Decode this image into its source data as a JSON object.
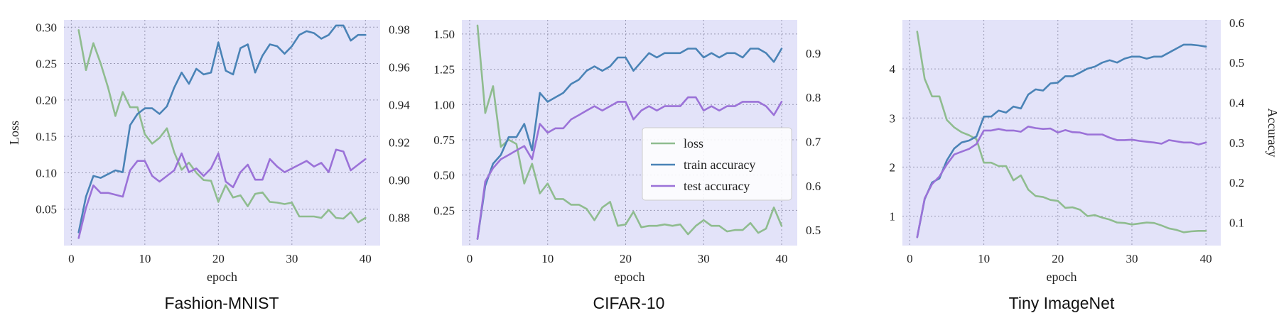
{
  "colors": {
    "plot_bg": "#e3e3f9",
    "grid": "#9a9ab4",
    "loss": "#8fbc8f",
    "train": "#4a83b6",
    "test": "#9b72d8"
  },
  "legend": {
    "loss": "loss",
    "train": "train accuracy",
    "test": "test accuracy"
  },
  "chart_data": [
    {
      "type": "line",
      "title": "Fashion-MNIST",
      "xlabel": "epoch",
      "ylabel_left": "Loss",
      "ylabel_right": "",
      "xlim": [
        -1.0,
        42.0
      ],
      "ylim_left": [
        0.0,
        0.31
      ],
      "ylim_right": [
        0.865,
        0.985
      ],
      "xticks": [
        0,
        10,
        20,
        30,
        40
      ],
      "yticks_left": [
        0.05,
        0.1,
        0.15,
        0.2,
        0.25,
        0.3
      ],
      "yticks_right": [
        0.88,
        0.9,
        0.92,
        0.94,
        0.96,
        0.98
      ],
      "ytick_labels_left": [
        "0.05",
        "0.10",
        "0.15",
        "0.20",
        "0.25",
        "0.30"
      ],
      "ytick_labels_right": [
        "0.88",
        "0.90",
        "0.92",
        "0.94",
        "0.96",
        "0.98"
      ],
      "grid": true,
      "legend_position": "none",
      "x": [
        1,
        2,
        3,
        4,
        5,
        6,
        7,
        8,
        9,
        10,
        11,
        12,
        13,
        14,
        15,
        16,
        17,
        18,
        19,
        20,
        21,
        22,
        23,
        24,
        25,
        26,
        27,
        28,
        29,
        30,
        31,
        32,
        33,
        34,
        35,
        36,
        37,
        38,
        39,
        40
      ],
      "series": [
        {
          "key": "loss",
          "name": "loss",
          "axis": "left",
          "values": [
            0.296,
            0.241,
            0.278,
            0.25,
            0.217,
            0.178,
            0.211,
            0.19,
            0.19,
            0.153,
            0.14,
            0.148,
            0.161,
            0.128,
            0.104,
            0.114,
            0.1,
            0.09,
            0.089,
            0.06,
            0.083,
            0.066,
            0.069,
            0.054,
            0.071,
            0.073,
            0.06,
            0.059,
            0.057,
            0.059,
            0.04,
            0.04,
            0.04,
            0.038,
            0.049,
            0.038,
            0.037,
            0.046,
            0.032,
            0.038
          ]
        },
        {
          "key": "train",
          "name": "train accuracy",
          "axis": "right",
          "values": [
            0.872,
            0.891,
            0.902,
            0.901,
            0.903,
            0.905,
            0.904,
            0.929,
            0.935,
            0.938,
            0.938,
            0.935,
            0.939,
            0.949,
            0.957,
            0.951,
            0.959,
            0.956,
            0.957,
            0.973,
            0.958,
            0.956,
            0.97,
            0.972,
            0.957,
            0.966,
            0.972,
            0.971,
            0.967,
            0.971,
            0.977,
            0.979,
            0.978,
            0.975,
            0.977,
            0.982,
            0.982,
            0.974,
            0.977,
            0.977
          ]
        },
        {
          "key": "test",
          "name": "test accuracy",
          "axis": "right",
          "values": [
            0.869,
            0.885,
            0.897,
            0.893,
            0.893,
            0.892,
            0.891,
            0.905,
            0.91,
            0.91,
            0.902,
            0.899,
            0.902,
            0.905,
            0.914,
            0.904,
            0.906,
            0.902,
            0.906,
            0.914,
            0.899,
            0.896,
            0.904,
            0.908,
            0.9,
            0.9,
            0.911,
            0.907,
            0.904,
            0.906,
            0.908,
            0.91,
            0.907,
            0.909,
            0.904,
            0.916,
            0.915,
            0.905,
            0.908,
            0.911
          ]
        }
      ]
    },
    {
      "type": "line",
      "title": "CIFAR-10",
      "xlabel": "epoch",
      "ylabel_left": "",
      "ylabel_right": "",
      "xlim": [
        -1.0,
        42.0
      ],
      "ylim_left": [
        0.0,
        1.6
      ],
      "ylim_right": [
        0.465,
        0.975
      ],
      "xticks": [
        0,
        10,
        20,
        30,
        40
      ],
      "yticks_left": [
        0.25,
        0.5,
        0.75,
        1.0,
        1.25,
        1.5
      ],
      "yticks_right": [
        0.5,
        0.6,
        0.7,
        0.8,
        0.9
      ],
      "ytick_labels_left": [
        "0.25",
        "0.50",
        "0.75",
        "1.00",
        "1.25",
        "1.50"
      ],
      "ytick_labels_right": [
        "0.5",
        "0.6",
        "0.7",
        "0.8",
        "0.9"
      ],
      "grid": true,
      "legend_position": "center-right",
      "x": [
        1,
        2,
        3,
        4,
        5,
        6,
        7,
        8,
        9,
        10,
        11,
        12,
        13,
        14,
        15,
        16,
        17,
        18,
        19,
        20,
        21,
        22,
        23,
        24,
        25,
        26,
        27,
        28,
        29,
        30,
        31,
        32,
        33,
        34,
        35,
        36,
        37,
        38,
        39,
        40
      ],
      "series": [
        {
          "key": "loss",
          "name": "loss",
          "axis": "left",
          "values": [
            1.56,
            0.94,
            1.13,
            0.7,
            0.75,
            0.72,
            0.44,
            0.58,
            0.37,
            0.44,
            0.33,
            0.33,
            0.29,
            0.29,
            0.26,
            0.18,
            0.27,
            0.31,
            0.14,
            0.15,
            0.24,
            0.13,
            0.14,
            0.14,
            0.15,
            0.14,
            0.15,
            0.08,
            0.14,
            0.18,
            0.14,
            0.14,
            0.1,
            0.11,
            0.11,
            0.16,
            0.09,
            0.12,
            0.27,
            0.14
          ]
        },
        {
          "key": "train",
          "name": "train accuracy",
          "axis": "right",
          "values": [
            0.48,
            0.6,
            0.65,
            0.67,
            0.71,
            0.71,
            0.74,
            0.68,
            0.81,
            0.79,
            0.8,
            0.81,
            0.83,
            0.84,
            0.86,
            0.87,
            0.86,
            0.87,
            0.89,
            0.89,
            0.86,
            0.88,
            0.9,
            0.89,
            0.9,
            0.9,
            0.9,
            0.91,
            0.91,
            0.89,
            0.9,
            0.89,
            0.9,
            0.9,
            0.89,
            0.91,
            0.91,
            0.9,
            0.88,
            0.91
          ]
        },
        {
          "key": "test",
          "name": "test accuracy",
          "axis": "right",
          "values": [
            0.48,
            0.61,
            0.64,
            0.66,
            0.67,
            0.68,
            0.69,
            0.66,
            0.74,
            0.72,
            0.73,
            0.73,
            0.75,
            0.76,
            0.77,
            0.78,
            0.77,
            0.78,
            0.79,
            0.79,
            0.75,
            0.77,
            0.78,
            0.77,
            0.78,
            0.78,
            0.78,
            0.8,
            0.8,
            0.77,
            0.78,
            0.77,
            0.78,
            0.78,
            0.79,
            0.79,
            0.79,
            0.78,
            0.76,
            0.79
          ]
        }
      ]
    },
    {
      "type": "line",
      "title": "Tiny ImageNet",
      "xlabel": "epoch",
      "ylabel_left": "",
      "ylabel_right": "Accuracy",
      "xlim": [
        -1.0,
        42.0
      ],
      "ylim_left": [
        0.4,
        5.0
      ],
      "ylim_right": [
        0.042,
        0.607
      ],
      "xticks": [
        0,
        10,
        20,
        30,
        40
      ],
      "yticks_left": [
        1,
        2,
        3,
        4
      ],
      "yticks_right": [
        0.1,
        0.2,
        0.3,
        0.4,
        0.5,
        0.6
      ],
      "ytick_labels_left": [
        "1",
        "2",
        "3",
        "4"
      ],
      "ytick_labels_right": [
        "0.1",
        "0.2",
        "0.3",
        "0.4",
        "0.5",
        "0.6"
      ],
      "grid": true,
      "legend_position": "none",
      "x": [
        1,
        2,
        3,
        4,
        5,
        6,
        7,
        8,
        9,
        10,
        11,
        12,
        13,
        14,
        15,
        16,
        17,
        18,
        19,
        20,
        21,
        22,
        23,
        24,
        25,
        26,
        27,
        28,
        29,
        30,
        31,
        32,
        33,
        34,
        35,
        36,
        37,
        38,
        39,
        40
      ],
      "series": [
        {
          "key": "loss",
          "name": "loss",
          "axis": "left",
          "values": [
            4.76,
            3.8,
            3.44,
            3.44,
            2.96,
            2.81,
            2.71,
            2.65,
            2.57,
            2.09,
            2.09,
            2.02,
            2.02,
            1.73,
            1.83,
            1.54,
            1.41,
            1.39,
            1.33,
            1.31,
            1.17,
            1.18,
            1.13,
            1.0,
            1.02,
            0.97,
            0.93,
            0.87,
            0.86,
            0.83,
            0.85,
            0.87,
            0.86,
            0.81,
            0.75,
            0.72,
            0.67,
            0.69,
            0.7,
            0.7
          ]
        },
        {
          "key": "train",
          "name": "train accuracy",
          "axis": "right",
          "values": [
            0.063,
            0.158,
            0.2,
            0.21,
            0.255,
            0.285,
            0.3,
            0.305,
            0.315,
            0.365,
            0.365,
            0.38,
            0.375,
            0.39,
            0.385,
            0.42,
            0.433,
            0.43,
            0.448,
            0.45,
            0.466,
            0.466,
            0.475,
            0.485,
            0.49,
            0.5,
            0.506,
            0.5,
            0.51,
            0.515,
            0.515,
            0.51,
            0.515,
            0.515,
            0.525,
            0.535,
            0.545,
            0.545,
            0.543,
            0.54
          ]
        },
        {
          "key": "test",
          "name": "test accuracy",
          "axis": "right",
          "values": [
            0.063,
            0.16,
            0.196,
            0.215,
            0.245,
            0.27,
            0.277,
            0.284,
            0.296,
            0.33,
            0.33,
            0.334,
            0.33,
            0.33,
            0.327,
            0.34,
            0.336,
            0.334,
            0.335,
            0.325,
            0.331,
            0.326,
            0.325,
            0.32,
            0.32,
            0.32,
            0.312,
            0.306,
            0.306,
            0.307,
            0.304,
            0.302,
            0.3,
            0.297,
            0.306,
            0.303,
            0.3,
            0.3,
            0.295,
            0.3
          ]
        }
      ]
    }
  ]
}
